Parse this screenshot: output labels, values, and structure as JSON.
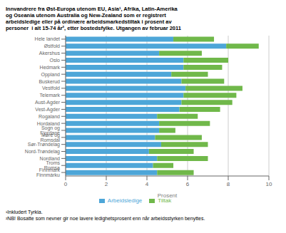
{
  "chart_data": {
    "type": "bar",
    "orientation": "horizontal",
    "stacked": true,
    "title": "Innvandrere fra Øst-Europa utenom EU, Asia¹, Afrika, Latin-Amerika\nog Oseania utenom Australia og New-Zealand som er registrert\narbeidsledige eller på ordinære arbeidsmarkedstiltak i prosent av\npersoner  i alt 15-74 år², etter bostedsfylke. Utgangen av februar 2011",
    "annotations": [
      "¹Inkludert Tyrkia.",
      "²NB! Bosatte som nevner gir noe lavere ledighetsprosent enn når arbeidsstyrken benyttes."
    ],
    "xlabel": "Prosent",
    "categories": [
      "Hele landet",
      "Østfold",
      "Akershus",
      "Oslo",
      "Hedmark",
      "Oppland",
      "Buskerud",
      "Vestfold",
      "Telemark",
      "Aust-Agder",
      "Vest-Agder",
      "Rogaland",
      "Hordaland",
      "Sogn og Fjordane",
      "Møre og Romsdal",
      "Sør-Trøndelag",
      "Nord-Trøndelag",
      "Nordland",
      "Troms Romsa",
      "Finnmark Finnmárku"
    ],
    "series": [
      {
        "name": "Arbeidsledige",
        "color": "#4da6d8",
        "values": [
          5.3,
          7.9,
          4.6,
          5.8,
          5.8,
          5.2,
          5.7,
          5.9,
          5.8,
          5.7,
          5.6,
          4.5,
          4.6,
          4.6,
          4.4,
          4.7,
          4.1,
          4.5,
          4.3,
          4.5
        ]
      },
      {
        "name": "Tiltak",
        "color": "#70b84a",
        "values": [
          2.0,
          1.6,
          2.1,
          2.2,
          1.9,
          1.8,
          2.1,
          2.8,
          2.6,
          2.5,
          2.0,
          2.0,
          2.5,
          0.8,
          2.3,
          2.3,
          2.2,
          2.5,
          1.0,
          1.8
        ]
      }
    ],
    "xlim": [
      0,
      10
    ],
    "xticks": [
      0,
      2,
      4,
      6,
      8,
      10
    ],
    "grid": true,
    "legend": "bottom"
  }
}
